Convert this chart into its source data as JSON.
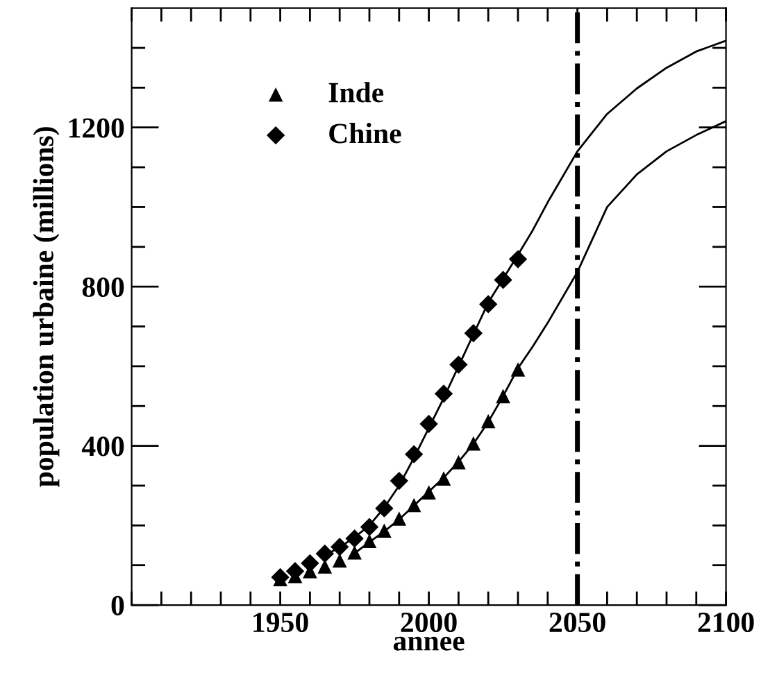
{
  "chart_data": {
    "type": "scatter",
    "xlabel": "annee",
    "ylabel": "population urbaine (millions)",
    "xlim": [
      1900,
      2100
    ],
    "ylim": [
      0,
      1500
    ],
    "xticks": [
      {
        "value": 1900,
        "label": null
      },
      {
        "value": 1910,
        "label": null
      },
      {
        "value": 1920,
        "label": null
      },
      {
        "value": 1930,
        "label": null
      },
      {
        "value": 1940,
        "label": null
      },
      1950,
      {
        "value": 1960,
        "label": null
      },
      {
        "value": 1970,
        "label": null
      },
      {
        "value": 1980,
        "label": null
      },
      {
        "value": 1990,
        "label": null
      },
      2000,
      {
        "value": 2010,
        "label": null
      },
      {
        "value": 2020,
        "label": null
      },
      {
        "value": 2030,
        "label": null
      },
      {
        "value": 2040,
        "label": null
      },
      2050,
      {
        "value": 2060,
        "label": null
      },
      {
        "value": 2070,
        "label": null
      },
      {
        "value": 2080,
        "label": null
      },
      {
        "value": 2090,
        "label": null
      },
      2100
    ],
    "yticks": [
      0,
      {
        "value": 100,
        "label": null
      },
      {
        "value": 200,
        "label": null
      },
      {
        "value": 300,
        "label": null
      },
      400,
      {
        "value": 500,
        "label": null
      },
      {
        "value": 600,
        "label": null
      },
      {
        "value": 700,
        "label": null
      },
      800,
      {
        "value": 900,
        "label": null
      },
      {
        "value": 1000,
        "label": null
      },
      {
        "value": 1100,
        "label": null
      },
      1200,
      {
        "value": 1300,
        "label": null
      },
      {
        "value": 1400,
        "label": null
      }
    ],
    "legend": "top left",
    "grid": false,
    "ref_lines": [
      {
        "axis": "x",
        "value": 2050,
        "color": "#000000",
        "line_style": "dashdot"
      }
    ],
    "series": [
      {
        "name": "Inde",
        "marker": "triangle",
        "color": "#000000",
        "x": [
          1950,
          1955,
          1960,
          1965,
          1970,
          1975,
          1980,
          1985,
          1990,
          1995,
          2000,
          2005,
          2010,
          2015,
          2020,
          2025,
          2030
        ],
        "values": [
          65,
          73,
          85,
          97,
          112,
          132,
          161,
          187,
          217,
          251,
          283,
          318,
          359,
          406,
          462,
          525,
          592
        ]
      },
      {
        "name": "Chine",
        "marker": "diamond",
        "color": "#000000",
        "x": [
          1950,
          1955,
          1960,
          1965,
          1970,
          1975,
          1980,
          1985,
          1990,
          1995,
          2000,
          2005,
          2010,
          2015,
          2020,
          2025,
          2030
        ],
        "values": [
          70,
          85,
          105,
          129,
          146,
          167,
          196,
          243,
          312,
          379,
          455,
          531,
          604,
          683,
          756,
          817,
          869
        ]
      },
      {
        "type": "line",
        "line_style": "solid",
        "color": "#000000",
        "x": [
          1975,
          1980,
          1985,
          1990,
          1995,
          2000,
          2005,
          2010,
          2015,
          2020,
          2025,
          2030,
          2035,
          2040,
          2050,
          2060,
          2070,
          2080,
          2090,
          2100
        ],
        "values": [
          130,
          158,
          185,
          215,
          250,
          285,
          320,
          360,
          405,
          460,
          525,
          595,
          650,
          709,
          837,
          1000,
          1082,
          1140,
          1181,
          1216
        ]
      },
      {
        "type": "line",
        "line_style": "solid",
        "color": "#000000",
        "x": [
          1965,
          1970,
          1975,
          1980,
          1985,
          1990,
          1995,
          2000,
          2005,
          2010,
          2015,
          2020,
          2025,
          2030,
          2035,
          2040,
          2050,
          2060,
          2070,
          2080,
          2090,
          2100
        ],
        "values": [
          125,
          145,
          170,
          200,
          245,
          300,
          370,
          445,
          520,
          600,
          680,
          760,
          820,
          880,
          942,
          1012,
          1140,
          1234,
          1298,
          1350,
          1391,
          1418
        ]
      }
    ]
  }
}
